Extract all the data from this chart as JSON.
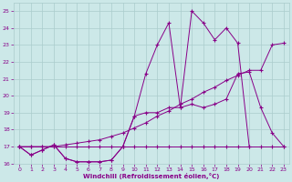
{
  "x_values": [
    0,
    1,
    2,
    3,
    4,
    5,
    6,
    7,
    8,
    9,
    10,
    11,
    12,
    13,
    14,
    15,
    16,
    17,
    18,
    19,
    20,
    21,
    22,
    23
  ],
  "line_flat": [
    17,
    17,
    17,
    17,
    17,
    17,
    17,
    17,
    17,
    17,
    17,
    17,
    17,
    17,
    17,
    17,
    17,
    17,
    17,
    17,
    17,
    17,
    17,
    17
  ],
  "line_wavy": [
    17,
    16.5,
    16.8,
    17.1,
    16.3,
    16.1,
    16.1,
    16.1,
    16.2,
    17.0,
    18.8,
    19.0,
    19.0,
    19.3,
    19.3,
    19.5,
    19.3,
    19.5,
    19.8,
    21.3,
    21.4,
    19.3,
    17.8,
    17.0
  ],
  "line_spike": [
    17,
    16.5,
    16.8,
    17.1,
    16.3,
    16.1,
    16.1,
    16.1,
    16.2,
    17.0,
    18.8,
    21.3,
    23.0,
    24.3,
    19.3,
    25.0,
    24.3,
    23.3,
    24.0,
    23.1,
    17.0,
    null,
    null,
    null
  ],
  "line_diag": [
    17,
    17,
    17,
    17,
    17.1,
    17.2,
    17.3,
    17.4,
    17.6,
    17.8,
    18.1,
    18.4,
    18.8,
    19.1,
    19.5,
    19.8,
    20.2,
    20.5,
    20.9,
    21.2,
    21.5,
    21.5,
    23.0,
    23.1
  ],
  "bg_color": "#cce8e8",
  "grid_color": "#aacccc",
  "line_color": "#880088",
  "xlabel": "Windchill (Refroidissement éolien,°C)",
  "xlim": [
    -0.5,
    23.5
  ],
  "ylim": [
    16.0,
    25.5
  ],
  "yticks": [
    16,
    17,
    18,
    19,
    20,
    21,
    22,
    23,
    24,
    25
  ],
  "xticks": [
    0,
    1,
    2,
    3,
    4,
    5,
    6,
    7,
    8,
    9,
    10,
    11,
    12,
    13,
    14,
    15,
    16,
    17,
    18,
    19,
    20,
    21,
    22,
    23
  ]
}
